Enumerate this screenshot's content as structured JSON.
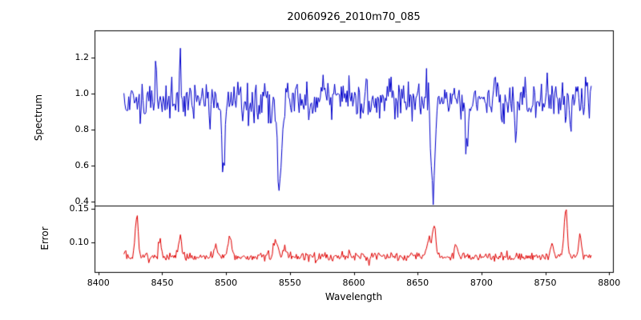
{
  "chart_data": {
    "type": "line",
    "title": "20060926_2010m70_085",
    "xlabel": "Wavelength",
    "xlim": [
      8397,
      8803
    ],
    "xticks": [
      {
        "v": 8400,
        "label": "8400"
      },
      {
        "v": 8450,
        "label": "8450"
      },
      {
        "v": 8500,
        "label": "8500"
      },
      {
        "v": 8550,
        "label": "8550"
      },
      {
        "v": 8600,
        "label": "8600"
      },
      {
        "v": 8650,
        "label": "8650"
      },
      {
        "v": 8700,
        "label": "8700"
      },
      {
        "v": 8750,
        "label": "8750"
      },
      {
        "v": 8800,
        "label": "8800"
      }
    ],
    "x_range": [
      8420,
      8786
    ],
    "x_step": 0.75,
    "seed": 1337,
    "panels": [
      {
        "ylabel": "Spectrum",
        "ylim": [
          0.38,
          1.35
        ],
        "yticks": [
          {
            "v": 0.4,
            "label": "0.4"
          },
          {
            "v": 0.6,
            "label": "0.6"
          },
          {
            "v": 0.8,
            "label": "0.8"
          },
          {
            "v": 1.0,
            "label": "1.0"
          },
          {
            "v": 1.2,
            "label": "1.2"
          }
        ],
        "series": {
          "name": "spectrum",
          "color": "#0000cc",
          "baseline": 0.965,
          "noise_sigma": 0.055,
          "absorption_lines": [
            {
              "center": 8498.0,
              "depth": 0.38,
              "sigma": 1.2
            },
            {
              "center": 8542.1,
              "depth": 0.52,
              "sigma": 1.8
            },
            {
              "center": 8662.1,
              "depth": 0.5,
              "sigma": 1.5
            },
            {
              "center": 8688.6,
              "depth": 0.28,
              "sigma": 1.2
            }
          ],
          "spikes": [
            {
              "x": 8445,
              "dv": 0.17
            },
            {
              "x": 8464,
              "dv": 0.28
            },
            {
              "x": 8487,
              "dv": -0.16
            },
            {
              "x": 8610,
              "dv": 0.1
            },
            {
              "x": 8727,
              "dv": -0.22
            },
            {
              "x": 8770,
              "dv": -0.18
            }
          ]
        }
      },
      {
        "ylabel": "Error",
        "ylim": [
          0.055,
          0.155
        ],
        "yticks": [
          {
            "v": 0.1,
            "label": "0.10"
          },
          {
            "v": 0.15,
            "label": "0.15"
          }
        ],
        "series": {
          "name": "error",
          "color": "#e00000",
          "baseline": 0.078,
          "noise_sigma": 0.0032,
          "peaks": [
            {
              "center": 8430,
              "height": 0.062,
              "sigma": 1.2
            },
            {
              "center": 8448,
              "height": 0.026,
              "sigma": 1.0
            },
            {
              "center": 8464,
              "height": 0.03,
              "sigma": 1.2
            },
            {
              "center": 8492,
              "height": 0.017,
              "sigma": 1.2
            },
            {
              "center": 8503,
              "height": 0.03,
              "sigma": 1.5
            },
            {
              "center": 8539,
              "height": 0.025,
              "sigma": 1.8
            },
            {
              "center": 8546,
              "height": 0.016,
              "sigma": 1.0
            },
            {
              "center": 8659,
              "height": 0.028,
              "sigma": 1.5
            },
            {
              "center": 8663,
              "height": 0.048,
              "sigma": 1.2
            },
            {
              "center": 8680,
              "height": 0.015,
              "sigma": 1.2
            },
            {
              "center": 8755,
              "height": 0.018,
              "sigma": 1.2
            },
            {
              "center": 8766,
              "height": 0.07,
              "sigma": 1.3
            },
            {
              "center": 8777,
              "height": 0.034,
              "sigma": 1.0
            }
          ]
        }
      }
    ],
    "axis_color": "#000000",
    "background_color": "#ffffff"
  }
}
